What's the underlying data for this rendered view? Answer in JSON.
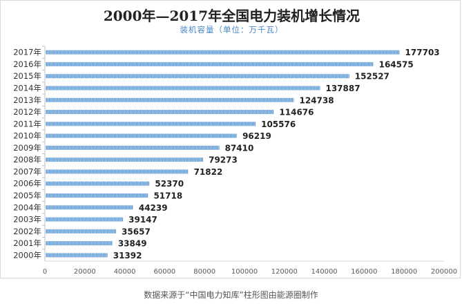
{
  "chart_data": {
    "type": "bar",
    "orientation": "horizontal",
    "title": "2000年—2017年全国电力装机增长情况",
    "subtitle": "装机容量（单位：万千瓦）",
    "categories": [
      "2017年",
      "2016年",
      "2015年",
      "2014年",
      "2013年",
      "2012年",
      "2011年",
      "2010年",
      "2009年",
      "2008年",
      "2007年",
      "2006年",
      "2005年",
      "2004年",
      "2003年",
      "2002年",
      "2001年",
      "2000年"
    ],
    "values": [
      177703,
      164575,
      152527,
      137887,
      124738,
      114676,
      105576,
      96219,
      87410,
      79273,
      71822,
      52370,
      51718,
      44239,
      39147,
      35657,
      33849,
      31392
    ],
    "value_labels": [
      "177703",
      "164575",
      "152527",
      "137887",
      "124738",
      "114676",
      "105576",
      "96219",
      "87410",
      "79273",
      "71822",
      "52370",
      "51718",
      "44239",
      "39147",
      "35657",
      "33849",
      "31392"
    ],
    "xlim": [
      0,
      200000
    ],
    "x_ticks": [
      "0",
      "20000",
      "40000",
      "60000",
      "80000",
      "100000",
      "120000",
      "140000",
      "160000",
      "180000",
      "200000"
    ],
    "bar_color": "#5b9bd5",
    "grid": false,
    "legend": "none"
  },
  "caption": "数据来源于“中国电力知库”柱形图由能源圈制作"
}
